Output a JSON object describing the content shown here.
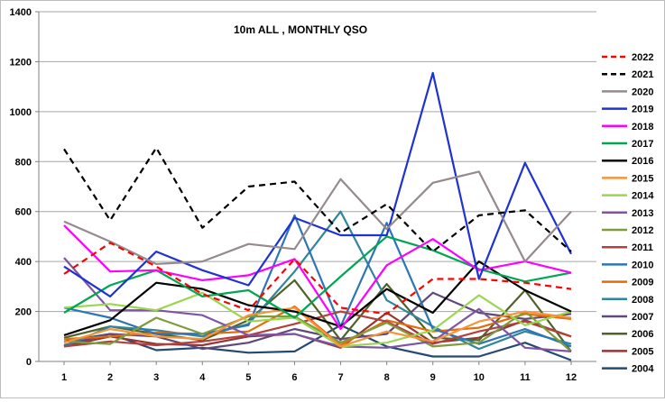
{
  "chart_data": {
    "type": "line",
    "title": "10m ALL , MONTHLY QSO",
    "xlabel": "",
    "ylabel": "",
    "ylim": [
      0,
      1400
    ],
    "ytick_step": 200,
    "grid": "horizontal",
    "legend_position": "right",
    "categories": [
      "1",
      "2",
      "3",
      "4",
      "5",
      "6",
      "7",
      "8",
      "9",
      "10",
      "11",
      "12"
    ],
    "series": [
      {
        "name": "2022",
        "color": "#ff0000",
        "dash": "dashed",
        "values": [
          350,
          475,
          380,
          270,
          205,
          410,
          215,
          190,
          330,
          330,
          315,
          290
        ]
      },
      {
        "name": "2021",
        "color": "#000000",
        "dash": "dashed",
        "values": [
          850,
          565,
          855,
          535,
          700,
          720,
          515,
          630,
          440,
          585,
          605,
          440
        ]
      },
      {
        "name": "2020",
        "color": "#948a8f",
        "dash": "solid",
        "values": [
          560,
          480,
          390,
          400,
          470,
          450,
          730,
          530,
          715,
          760,
          400,
          600
        ]
      },
      {
        "name": "2019",
        "color": "#1f32d4",
        "dash": "solid",
        "values": [
          380,
          260,
          440,
          365,
          305,
          575,
          505,
          505,
          1155,
          330,
          795,
          430
        ]
      },
      {
        "name": "2018",
        "color": "#ff00ff",
        "dash": "solid",
        "values": [
          545,
          360,
          365,
          325,
          345,
          410,
          130,
          385,
          490,
          365,
          400,
          355
        ]
      },
      {
        "name": "2017",
        "color": "#00a651",
        "dash": "solid",
        "values": [
          195,
          305,
          365,
          260,
          285,
          175,
          340,
          500,
          445,
          370,
          320,
          355
        ]
      },
      {
        "name": "2016",
        "color": "#000000",
        "dash": "solid",
        "values": [
          105,
          165,
          315,
          290,
          225,
          200,
          140,
          290,
          195,
          400,
          285,
          200
        ]
      },
      {
        "name": "2015",
        "color": "#f7933b",
        "dash": "solid",
        "values": [
          75,
          130,
          100,
          90,
          185,
          215,
          60,
          120,
          80,
          160,
          200,
          175
        ]
      },
      {
        "name": "2014",
        "color": "#9cd651",
        "dash": "solid",
        "values": [
          215,
          230,
          205,
          275,
          160,
          175,
          60,
          75,
          125,
          265,
          145,
          200
        ]
      },
      {
        "name": "2013",
        "color": "#7e55a3",
        "dash": "solid",
        "values": [
          415,
          205,
          205,
          185,
          105,
          110,
          60,
          55,
          80,
          210,
          55,
          40
        ]
      },
      {
        "name": "2012",
        "color": "#7d9c3a",
        "dash": "solid",
        "values": [
          80,
          70,
          175,
          110,
          180,
          180,
          75,
          155,
          60,
          75,
          200,
          40
        ]
      },
      {
        "name": "2011",
        "color": "#b0413e",
        "dash": "solid",
        "values": [
          60,
          80,
          65,
          80,
          105,
          150,
          200,
          160,
          70,
          120,
          160,
          100
        ]
      },
      {
        "name": "2010",
        "color": "#2e75b6",
        "dash": "solid",
        "values": [
          215,
          175,
          110,
          110,
          145,
          585,
          140,
          555,
          130,
          70,
          130,
          60
        ]
      },
      {
        "name": "2009",
        "color": "#e36c09",
        "dash": "solid",
        "values": [
          90,
          100,
          115,
          110,
          120,
          220,
          65,
          165,
          120,
          135,
          190,
          170
        ]
      },
      {
        "name": "2008",
        "color": "#31859c",
        "dash": "solid",
        "values": [
          60,
          140,
          125,
          100,
          150,
          360,
          600,
          245,
          140,
          50,
          120,
          70
        ]
      },
      {
        "name": "2007",
        "color": "#60497a",
        "dash": "solid",
        "values": [
          65,
          110,
          100,
          50,
          75,
          130,
          90,
          110,
          275,
          195,
          170,
          190
        ]
      },
      {
        "name": "2006",
        "color": "#4f6228",
        "dash": "solid",
        "values": [
          95,
          140,
          110,
          85,
          165,
          325,
          85,
          310,
          95,
          85,
          285,
          40
        ]
      },
      {
        "name": "2005",
        "color": "#943634",
        "dash": "solid",
        "values": [
          60,
          100,
          70,
          65,
          100,
          110,
          55,
          195,
          75,
          95,
          165,
          100
        ]
      },
      {
        "name": "2004",
        "color": "#244a73",
        "dash": "solid",
        "values": [
          80,
          110,
          45,
          55,
          35,
          40,
          145,
          60,
          20,
          20,
          75,
          5
        ]
      }
    ]
  }
}
